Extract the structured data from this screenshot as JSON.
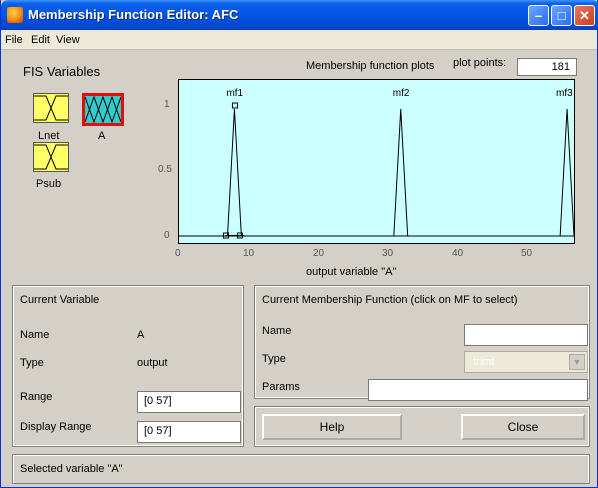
{
  "window": {
    "title": "Membership Function Editor: AFC"
  },
  "menu": [
    "File",
    "Edit",
    "View"
  ],
  "fis_variables": {
    "label": "FIS Variables",
    "vars": [
      {
        "name": "Lnet",
        "type": "input"
      },
      {
        "name": "A",
        "type": "output",
        "selected": true
      },
      {
        "name": "Psub",
        "type": "input"
      }
    ]
  },
  "plot": {
    "header": "Membership function plots",
    "plot_points_label": "plot points:",
    "plot_points_value": "181",
    "x_label": "output variable \"A\"",
    "x_ticks": [
      "0",
      "10",
      "20",
      "30",
      "40",
      "50"
    ],
    "y_ticks": [
      "0",
      "0.5",
      "1"
    ],
    "mf_labels": [
      "mf1",
      "mf2",
      "mf3"
    ]
  },
  "chart_data": {
    "type": "line",
    "xlim": [
      0,
      57
    ],
    "ylim": [
      0,
      1
    ],
    "xlabel": "output variable \"A\"",
    "series": [
      {
        "name": "mf1",
        "shape": "trimf",
        "params": [
          7,
          8,
          9
        ]
      },
      {
        "name": "mf2",
        "shape": "trimf",
        "params": [
          31,
          32,
          33
        ]
      },
      {
        "name": "mf3",
        "shape": "trimf",
        "params": [
          55,
          56,
          57
        ]
      }
    ]
  },
  "current_variable": {
    "header": "Current Variable",
    "name_label": "Name",
    "name_value": "A",
    "type_label": "Type",
    "type_value": "output",
    "range_label": "Range",
    "range_value": "[0 57]",
    "display_range_label": "Display Range",
    "display_range_value": "[0 57]"
  },
  "current_mf": {
    "header": "Current Membership Function (click on MF to select)",
    "name_label": "Name",
    "name_value": "",
    "type_label": "Type",
    "type_value": "trimf",
    "params_label": "Params",
    "params_value": ""
  },
  "buttons": {
    "help": "Help",
    "close": "Close"
  },
  "status": "Selected variable \"A\""
}
